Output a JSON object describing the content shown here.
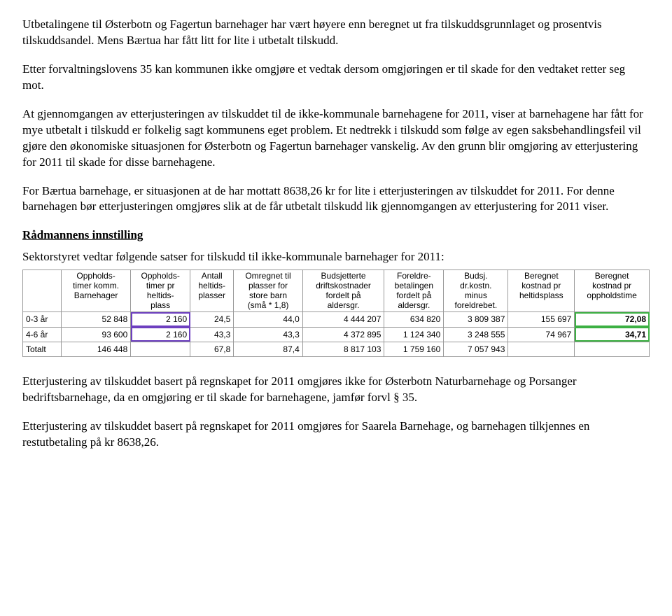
{
  "paragraphs": {
    "p1": "Utbetalingene til Østerbotn og Fagertun barnehager har vært høyere enn beregnet ut fra tilskuddsgrunnlaget og prosentvis tilskuddsandel. Mens Bærtua har fått litt for lite i utbetalt tilskudd.",
    "p2": "Etter forvaltningslovens 35 kan kommunen ikke omgjøre et vedtak dersom omgjøringen er til skade for den vedtaket retter seg mot.",
    "p3": "At gjennomgangen av etterjusteringen av tilskuddet til de ikke-kommunale barnehagene for 2011, viser at barnehagene har fått for mye utbetalt i tilskudd er folkelig sagt kommunens eget problem. Et nedtrekk i tilskudd som følge av egen saksbehandlingsfeil vil gjøre den økonomiske situasjonen for Østerbotn og Fagertun barnehager vanskelig. Av den grunn blir omgjøring av etterjustering for 2011 til skade for disse barnehagene.",
    "p4": "For Bærtua barnehage, er situasjonen at de har mottatt 8638,26 kr for lite i etterjusteringen av tilskuddet for 2011. For denne barnehagen bør etterjusteringen omgjøres slik at de får utbetalt tilskudd lik gjennomgangen av etterjustering for 2011 viser.",
    "heading": "Rådmannens innstilling",
    "intro": "Sektorstyret vedtar følgende satser for tilskudd til ikke-kommunale barnehager for 2011:",
    "p5": "Etterjustering av tilskuddet basert på regnskapet for 2011 omgjøres ikke for Østerbotn Naturbarnehage og Porsanger bedriftsbarnehage, da en omgjøring er til skade for barnehagene, jamfør forvl § 35.",
    "p6": "Etterjustering av tilskuddet basert på regnskapet for 2011 omgjøres for Saarela Barnehage, og barnehagen tilkjennes en restutbetaling på kr 8638,26."
  },
  "table": {
    "headers": [
      "",
      "Oppholds-\ntimer komm.\nBarnehager",
      "Oppholds-\ntimer pr\nheltids-\nplass",
      "Antall\nheltids-\nplasser",
      "Omregnet til\nplasser for\nstore barn\n(små * 1,8)",
      "Budsjetterte\ndriftskostnader\nfordelt på\naldersgr.",
      "Foreldre-\nbetalingen\nfordelt på\naldersgr.",
      "Budsj.\ndr.kostn.\nminus\nforeldrebet.",
      "Beregnet\nkostnad pr\nheltidsplass",
      "Beregnet\nkostnad pr\noppholdstime"
    ],
    "rows": [
      {
        "cells": [
          "0-3 år",
          "52 848",
          "2 160",
          "24,5",
          "44,0",
          "4 444 207",
          "634 820",
          "3 809 387",
          "155 697",
          "72,08"
        ],
        "hl": [
          false,
          false,
          true,
          false,
          false,
          false,
          false,
          false,
          false,
          "green"
        ]
      },
      {
        "cells": [
          "4-6 år",
          "93 600",
          "2 160",
          "43,3",
          "43,3",
          "4 372 895",
          "1 124 340",
          "3 248 555",
          "74 967",
          "34,71"
        ],
        "hl": [
          false,
          false,
          true,
          false,
          false,
          false,
          false,
          false,
          false,
          "green"
        ]
      },
      {
        "cells": [
          "Totalt",
          "146 448",
          "",
          "67,8",
          "87,4",
          "8 817 103",
          "1 759 160",
          "7 057 943",
          "",
          ""
        ],
        "hl": [
          false,
          false,
          false,
          false,
          false,
          false,
          false,
          false,
          false,
          false
        ]
      }
    ],
    "styling": {
      "border_color": "#9a9a9a",
      "highlight_green": "#3cb043",
      "highlight_purple": "#6d3fbf",
      "font_family": "Arial",
      "font_size_pt": 9,
      "body_font_family": "Times New Roman",
      "body_font_size_pt": 13
    }
  }
}
